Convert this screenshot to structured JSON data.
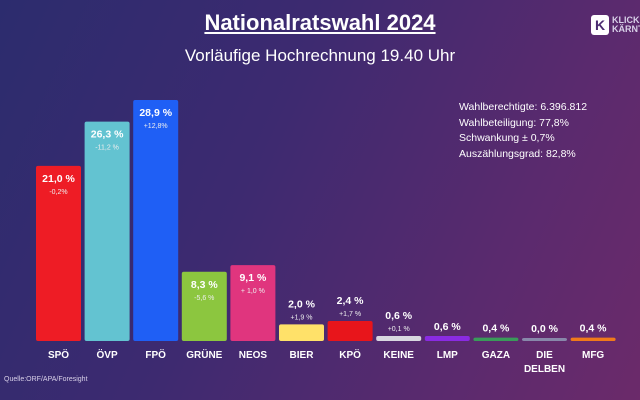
{
  "header": {
    "title": "Nationalratswahl 2024",
    "subtitle": "Vorläufige Hochrechnung 19.40 Uhr",
    "logo_letter": "K",
    "logo_line1": "KLICK",
    "logo_line2": "KÄRNTEN"
  },
  "stats": [
    "Wahlberechtigte: 6.396.812",
    "Wahlbeteiligung: 77,8%",
    "Schwankung ± 0,7%",
    "Auszählungsgrad: 82,8%"
  ],
  "source": "Quelle:ORF/APA/Foresight",
  "chart_data": {
    "type": "bar",
    "title": "Vorläufige Hochrechnung 19.40 Uhr",
    "xlabel": "",
    "ylabel": "",
    "grid": false,
    "ylim": [
      0,
      30
    ],
    "categories": [
      "SPÖ",
      "ÖVP",
      "FPÖ",
      "GRÜNE",
      "NEOS",
      "BIER",
      "KPÖ",
      "KEINE",
      "LMP",
      "GAZA",
      "DIE DELBEN",
      "MFG"
    ],
    "values": [
      21.0,
      26.3,
      28.9,
      8.3,
      9.1,
      2.0,
      2.4,
      0.6,
      0.6,
      0.4,
      0.0,
      0.4
    ],
    "value_labels": [
      "21,0 %",
      "26,3 %",
      "28,9 %",
      "8,3 %",
      "9,1 %",
      "2,0 %",
      "2,4 %",
      "0,6 %",
      "0,6 %",
      "0,4 %",
      "0,0 %",
      "0,4 %"
    ],
    "change_labels": [
      "-0,2%",
      "-11,2 %",
      "+12,8%",
      "-5,6 %",
      "+ 1,0 %",
      "+1,9 %",
      "+1,7 %",
      "+0,1 %",
      "",
      "",
      "",
      ""
    ],
    "colors": [
      "#ee1c25",
      "#63c3d1",
      "#1f5ff5",
      "#8cc63f",
      "#e0357e",
      "#ffe169",
      "#e8151b",
      "#d8d8e0",
      "#8a2be2",
      "#3a9a5a",
      "#8888aa",
      "#f07a1a"
    ]
  }
}
